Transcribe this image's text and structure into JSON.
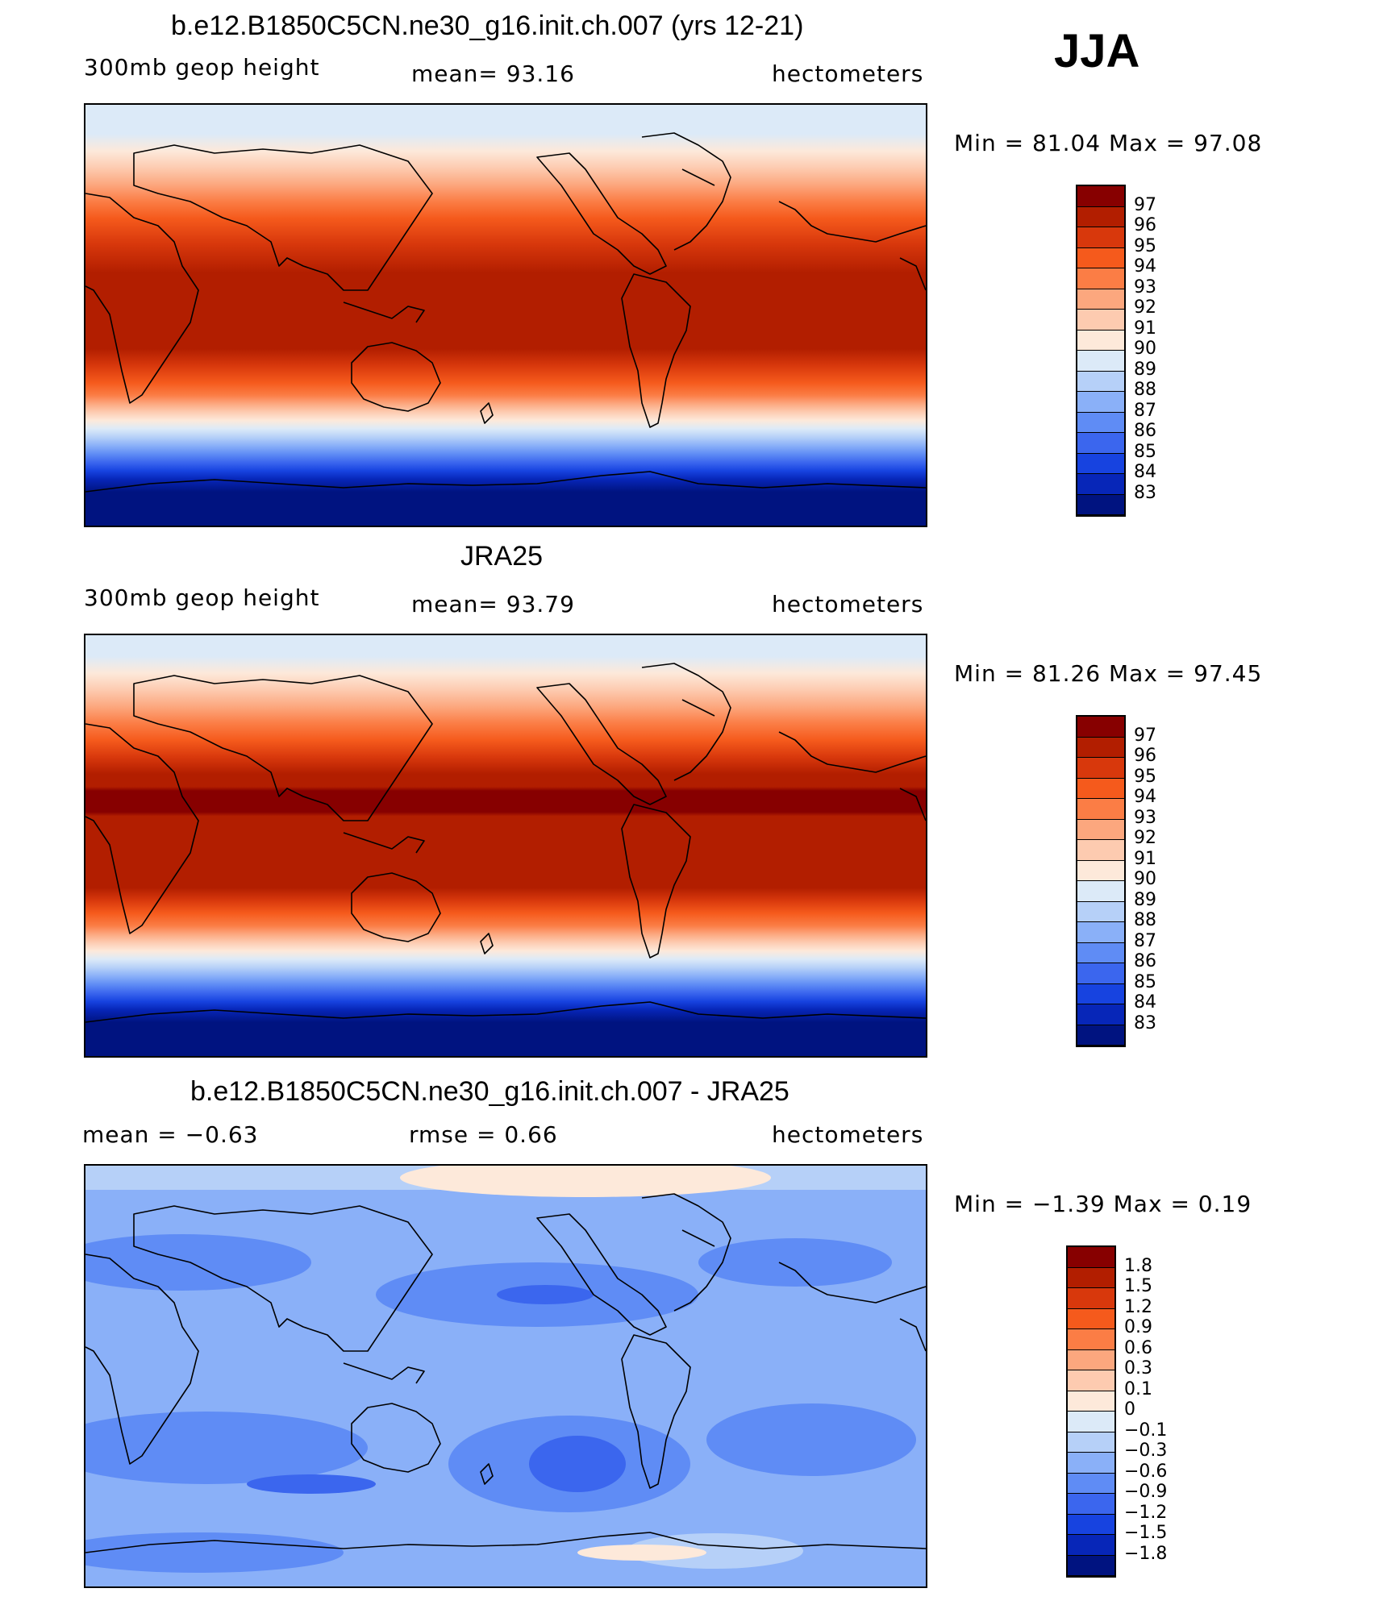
{
  "season": "JJA",
  "panels": [
    {
      "title": "b.e12.B1850C5CN.ne30_g16.init.ch.007 (yrs 12-21)",
      "left_label": "300mb geop height",
      "center_label": "mean=  93.16",
      "right_label": "hectometers",
      "minmax": "Min =  81.04 Max =  97.08",
      "colorbar_labels": [
        "97",
        "96",
        "95",
        "94",
        "93",
        "92",
        "91",
        "90",
        "89",
        "88",
        "87",
        "86",
        "85",
        "84",
        "83"
      ],
      "colorbar_colors": [
        "#870000",
        "#b21e00",
        "#d8380c",
        "#f55a1c",
        "#fb7d45",
        "#fca77e",
        "#fdcbb0",
        "#fde9da",
        "#dceaf8",
        "#b6d0f8",
        "#8ab0f8",
        "#5f8cf5",
        "#3b66ee",
        "#1743e0",
        "#0726b8",
        "#001380"
      ]
    },
    {
      "title": "JRA25",
      "left_label": "300mb geop height",
      "center_label": "mean=  93.79",
      "right_label": "hectometers",
      "minmax": "Min =  81.26 Max =  97.45",
      "colorbar_labels": [
        "97",
        "96",
        "95",
        "94",
        "93",
        "92",
        "91",
        "90",
        "89",
        "88",
        "87",
        "86",
        "85",
        "84",
        "83"
      ],
      "colorbar_colors": [
        "#870000",
        "#b21e00",
        "#d8380c",
        "#f55a1c",
        "#fb7d45",
        "#fca77e",
        "#fdcbb0",
        "#fde9da",
        "#dceaf8",
        "#b6d0f8",
        "#8ab0f8",
        "#5f8cf5",
        "#3b66ee",
        "#1743e0",
        "#0726b8",
        "#001380"
      ]
    },
    {
      "title": "b.e12.B1850C5CN.ne30_g16.init.ch.007 - JRA25",
      "left_label": "mean =  −0.63",
      "center_label": "rmse =   0.66",
      "right_label": "hectometers",
      "minmax": "Min =  −1.39 Max =   0.19",
      "colorbar_labels": [
        "1.8",
        "1.5",
        "1.2",
        "0.9",
        "0.6",
        "0.3",
        "0.1",
        "0",
        "−0.1",
        "−0.3",
        "−0.6",
        "−0.9",
        "−1.2",
        "−1.5",
        "−1.8"
      ],
      "colorbar_colors": [
        "#870000",
        "#b21e00",
        "#d8380c",
        "#f55a1c",
        "#fb7d45",
        "#fca77e",
        "#fdcbb0",
        "#fde9da",
        "#dceaf8",
        "#b6d0f8",
        "#8ab0f8",
        "#5f8cf5",
        "#3b66ee",
        "#1743e0",
        "#0726b8",
        "#001380"
      ]
    }
  ]
}
